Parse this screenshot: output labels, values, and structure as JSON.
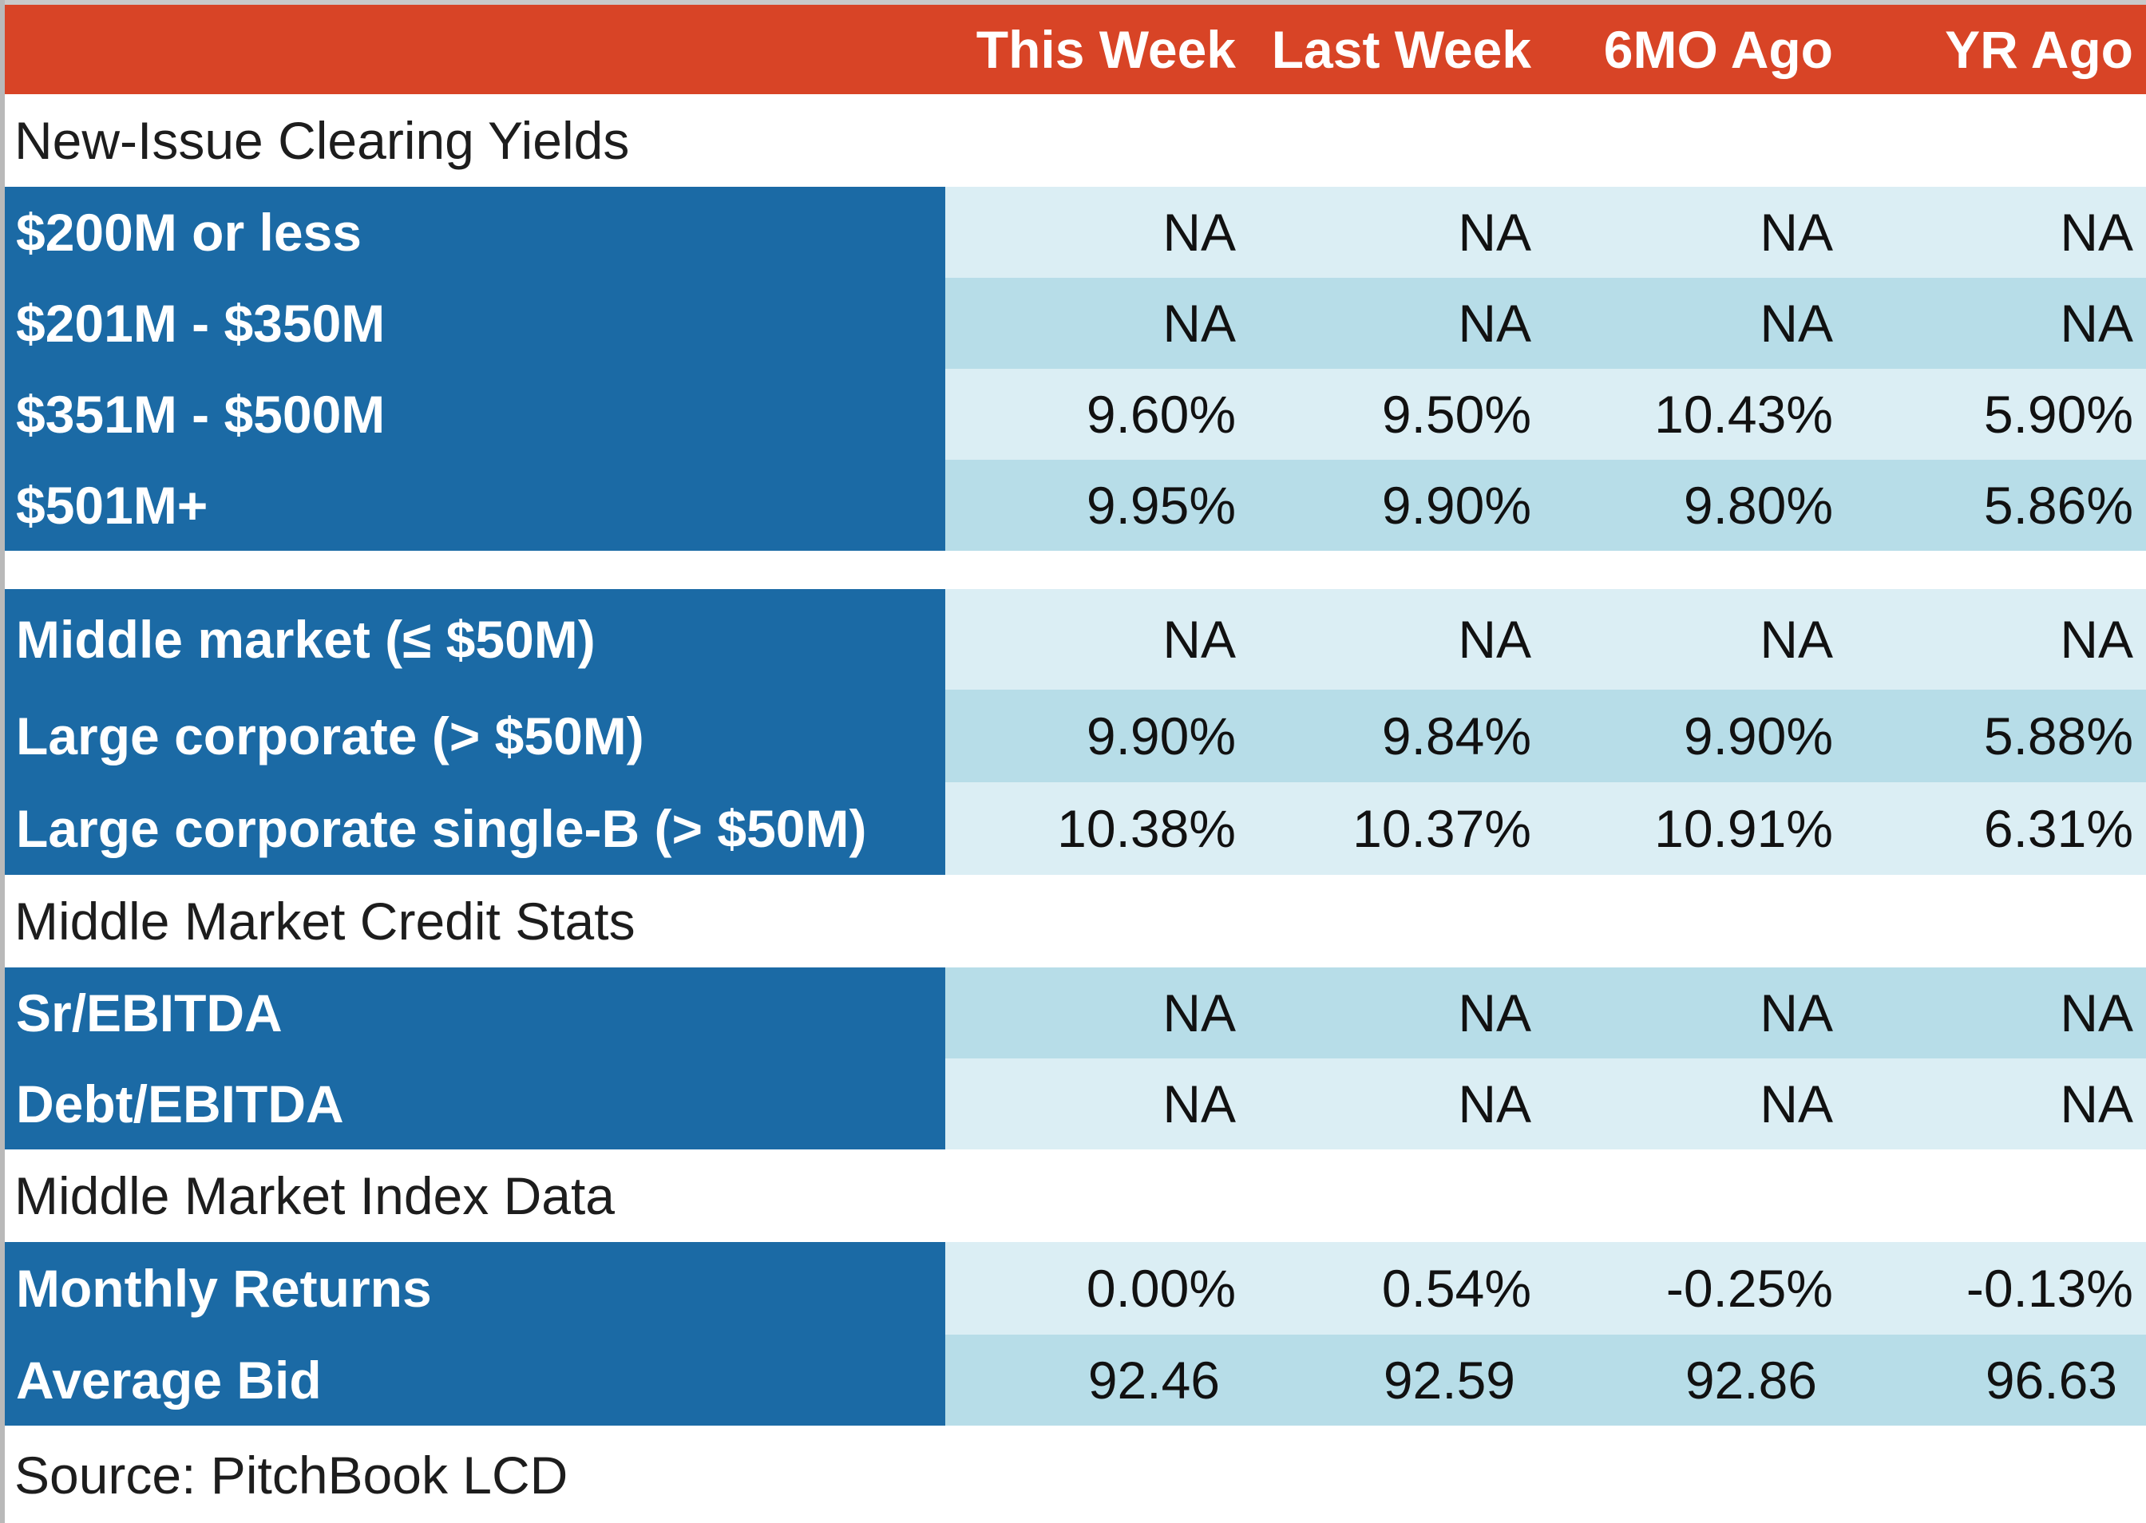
{
  "header": {
    "columns": [
      "This Week",
      "Last Week",
      "6MO Ago",
      "YR Ago"
    ]
  },
  "sections": {
    "new_issue": {
      "title": "New-Issue Clearing Yields",
      "rows": [
        {
          "label": "$200M or less",
          "values": [
            "NA",
            "NA",
            "NA",
            "NA"
          ]
        },
        {
          "label": "$201M - $350M",
          "values": [
            "NA",
            "NA",
            "NA",
            "NA"
          ]
        },
        {
          "label": "$351M - $500M",
          "values": [
            "9.60%",
            "9.50%",
            "10.43%",
            "5.90%"
          ]
        },
        {
          "label": "$501M+",
          "values": [
            "9.95%",
            "9.90%",
            "9.80%",
            "5.86%"
          ]
        }
      ]
    },
    "market_segments": {
      "rows": [
        {
          "label": "Middle market (≤ $50M)",
          "values": [
            "NA",
            "NA",
            "NA",
            "NA"
          ]
        },
        {
          "label": "Large corporate (> $50M)",
          "values": [
            "9.90%",
            "9.84%",
            "9.90%",
            "5.88%"
          ]
        },
        {
          "label": "Large corporate single-B (> $50M)",
          "values": [
            "10.38%",
            "10.37%",
            "10.91%",
            "6.31%"
          ]
        }
      ]
    },
    "credit_stats": {
      "title": "Middle Market Credit Stats",
      "rows": [
        {
          "label": "Sr/EBITDA",
          "values": [
            "NA",
            "NA",
            "NA",
            "NA"
          ]
        },
        {
          "label": "Debt/EBITDA",
          "values": [
            "NA",
            "NA",
            "NA",
            "NA"
          ]
        }
      ]
    },
    "index_data": {
      "title": "Middle Market Index Data",
      "rows": [
        {
          "label": "Monthly Returns",
          "values": [
            "0.00%",
            "0.54%",
            "-0.25%",
            "-0.13%"
          ]
        },
        {
          "label": "Average Bid",
          "values": [
            "92.46",
            "92.59",
            "92.86",
            "96.63"
          ]
        }
      ]
    }
  },
  "source": "Source: PitchBook LCD",
  "colors": {
    "header_bg": "#d84426",
    "label_bg": "#1b6aa5",
    "row_light": "#dbeef4",
    "row_dark": "#b7dde8"
  }
}
